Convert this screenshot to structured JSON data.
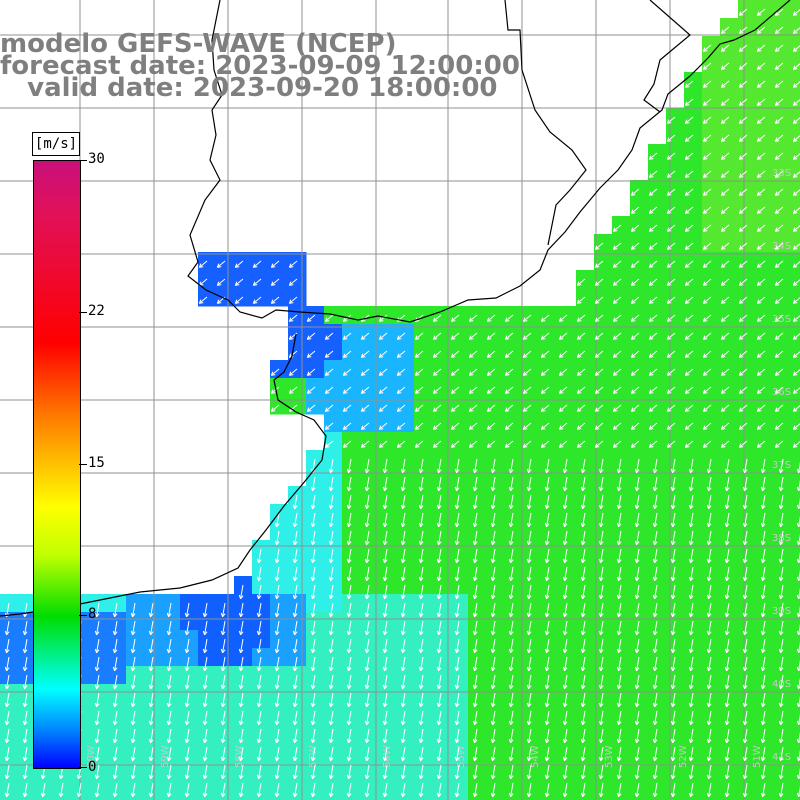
{
  "title": {
    "line1": "modelo GEFS-WAVE (NCEP)",
    "line2": "forecast date: 2023-09-09 12:00:00",
    "line3": "   valid date: 2023-09-20 18:00:00"
  },
  "colorbar": {
    "unit": "[m/s]",
    "ticks": [
      "30",
      "22",
      "15",
      "8",
      "0"
    ],
    "tick_values": [
      30,
      22,
      15,
      8,
      0
    ],
    "colors": [
      "#0000ff",
      "#0080ff",
      "#00ffff",
      "#00dd00",
      "#bfff00",
      "#ffff00",
      "#ff7a00",
      "#ff0000",
      "#e0115c",
      "#c8107a"
    ]
  },
  "map": {
    "variable": "wind speed and direction",
    "lat_labels": [
      "33S",
      "34S",
      "35S",
      "36S",
      "37S",
      "38S",
      "39S",
      "40S",
      "41S"
    ],
    "lon_labels": [
      "60W",
      "59W",
      "58W",
      "57W",
      "56W",
      "55W",
      "54W",
      "53W",
      "52W",
      "51W"
    ],
    "land_color": "#ffffff",
    "coastline_color": "#000000",
    "grid_color": "#808080",
    "arrow_color": "#ffffff"
  }
}
